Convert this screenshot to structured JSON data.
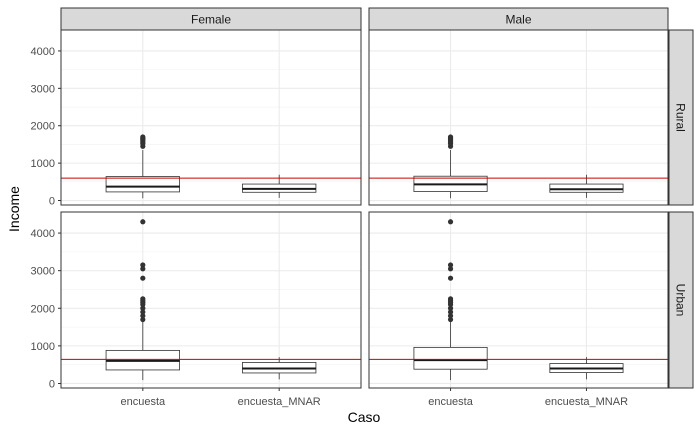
{
  "chart_data": {
    "type": "boxplot",
    "xlabel": "Caso",
    "ylabel": "Income",
    "categories": [
      "encuesta",
      "encuesta_MNAR"
    ],
    "col_facets": [
      "Female",
      "Male"
    ],
    "row_facets": [
      "Rural",
      "Urban"
    ],
    "ylim": [
      -120,
      4560
    ],
    "yticks": [
      0,
      1000,
      2000,
      3000,
      4000
    ],
    "grid": true,
    "reference_line_color": "#cc0000",
    "panels": [
      {
        "col": "Female",
        "row": "Rural",
        "reference_line": 600,
        "boxes": [
          {
            "category": "encuesta",
            "whisker_low": 60,
            "q1": 230,
            "median": 370,
            "q3": 640,
            "whisker_high": 1350,
            "outliers": [
              1450,
              1520,
              1560,
              1600,
              1640,
              1670,
              1700
            ]
          },
          {
            "category": "encuesta_MNAR",
            "whisker_low": 70,
            "q1": 220,
            "median": 310,
            "q3": 440,
            "whisker_high": 690,
            "outliers": []
          }
        ]
      },
      {
        "col": "Male",
        "row": "Rural",
        "reference_line": 600,
        "boxes": [
          {
            "category": "encuesta",
            "whisker_low": 60,
            "q1": 240,
            "median": 430,
            "q3": 650,
            "whisker_high": 1350,
            "outliers": [
              1450,
              1520,
              1560,
              1600,
              1640,
              1670,
              1700
            ]
          },
          {
            "category": "encuesta_MNAR",
            "whisker_low": 70,
            "q1": 220,
            "median": 300,
            "q3": 440,
            "whisker_high": 690,
            "outliers": []
          }
        ]
      },
      {
        "col": "Female",
        "row": "Urban",
        "reference_line": 640,
        "boxes": [
          {
            "category": "encuesta",
            "whisker_low": 90,
            "q1": 360,
            "median": 600,
            "q3": 880,
            "whisker_high": 1650,
            "outliers": [
              1700,
              1800,
              1900,
              2000,
              2100,
              2150,
              2200,
              2250,
              2800,
              3050,
              3150,
              4300
            ]
          },
          {
            "category": "encuesta_MNAR",
            "whisker_low": 110,
            "q1": 280,
            "median": 400,
            "q3": 560,
            "whisker_high": 700,
            "outliers": []
          }
        ]
      },
      {
        "col": "Male",
        "row": "Urban",
        "reference_line": 640,
        "boxes": [
          {
            "category": "encuesta",
            "whisker_low": 90,
            "q1": 380,
            "median": 620,
            "q3": 960,
            "whisker_high": 1650,
            "outliers": [
              1700,
              1800,
              1900,
              2000,
              2100,
              2150,
              2200,
              2250,
              2800,
              3050,
              3150,
              4300
            ]
          },
          {
            "category": "encuesta_MNAR",
            "whisker_low": 110,
            "q1": 290,
            "median": 400,
            "q3": 530,
            "whisker_high": 700,
            "outliers": []
          }
        ]
      }
    ]
  }
}
